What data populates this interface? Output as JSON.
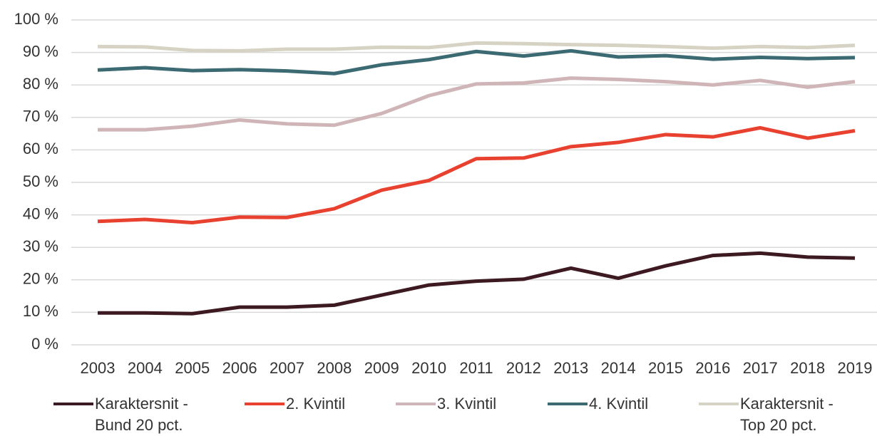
{
  "chart_data": {
    "type": "line",
    "x": [
      "2003",
      "2004",
      "2005",
      "2006",
      "2007",
      "2008",
      "2009",
      "2010",
      "2011",
      "2012",
      "2013",
      "2014",
      "2015",
      "2016",
      "2017",
      "2018",
      "2019"
    ],
    "series": [
      {
        "name": "Karaktersnit - Bund 20 pct.",
        "color": "#3d1a22",
        "values": [
          9.8,
          9.8,
          9.6,
          11.6,
          11.6,
          12.2,
          15.3,
          18.4,
          19.6,
          20.2,
          23.6,
          20.5,
          24.3,
          27.5,
          28.2,
          27.0,
          26.7
        ]
      },
      {
        "name": "2. Kvintil",
        "color": "#e8412f",
        "values": [
          38.0,
          38.6,
          37.6,
          39.3,
          39.2,
          41.9,
          47.6,
          50.6,
          57.3,
          57.5,
          61.0,
          62.3,
          64.7,
          64.0,
          66.8,
          63.6,
          65.9
        ]
      },
      {
        "name": "3. Kvintil",
        "color": "#cfb5b8",
        "values": [
          66.2,
          66.2,
          67.3,
          69.2,
          68.0,
          67.6,
          71.2,
          76.7,
          80.3,
          80.6,
          82.1,
          81.7,
          81.0,
          80.0,
          81.4,
          79.3,
          81.0
        ]
      },
      {
        "name": "4. Kvintil",
        "color": "#3c6a73",
        "values": [
          84.6,
          85.3,
          84.4,
          84.7,
          84.3,
          83.5,
          86.2,
          87.8,
          90.3,
          88.9,
          90.5,
          88.6,
          89.0,
          87.9,
          88.5,
          88.1,
          88.4
        ]
      },
      {
        "name": "Karaktersnit - Top 20 pct.",
        "color": "#d6d3c4",
        "values": [
          91.8,
          91.7,
          90.6,
          90.5,
          91.0,
          91.0,
          91.6,
          91.5,
          92.9,
          92.7,
          92.4,
          92.2,
          91.8,
          91.3,
          91.8,
          91.5,
          92.2
        ]
      }
    ],
    "ylim": [
      0,
      100
    ],
    "yticks": [
      {
        "value": 0,
        "label": "0 %"
      },
      {
        "value": 10,
        "label": "10 %"
      },
      {
        "value": 20,
        "label": "20 %"
      },
      {
        "value": 30,
        "label": "30 %"
      },
      {
        "value": 40,
        "label": "40 %"
      },
      {
        "value": 50,
        "label": "50 %"
      },
      {
        "value": 60,
        "label": "60 %"
      },
      {
        "value": 70,
        "label": "70 %"
      },
      {
        "value": 80,
        "label": "80 %"
      },
      {
        "value": 90,
        "label": "90 %"
      },
      {
        "value": 100,
        "label": "100 %"
      }
    ],
    "grid": true
  }
}
